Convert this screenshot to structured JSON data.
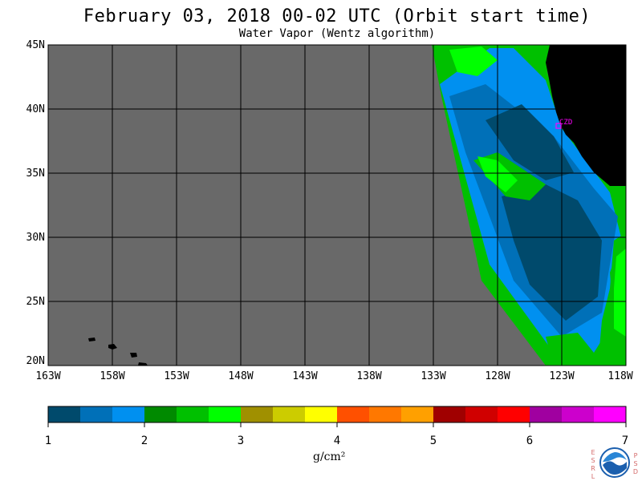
{
  "header": {
    "title": "February 03, 2018  00-02 UTC  (Orbit start time)",
    "subtitle": "Water Vapor (Wentz algorithm)"
  },
  "map": {
    "lat_labels": [
      "45N",
      "40N",
      "35N",
      "30N",
      "25N",
      "20N"
    ],
    "lon_labels": [
      "163W",
      "158W",
      "153W",
      "148W",
      "143W",
      "138W",
      "133W",
      "128W",
      "123W",
      "118W"
    ],
    "lat_range": [
      20,
      45
    ],
    "lon_range": [
      -163,
      -118
    ],
    "no_data_color": "#696969",
    "land_color": "#000000",
    "grid_color": "#000000",
    "station": {
      "label": "CZD",
      "lat": 38.6,
      "lon": -123.2,
      "color": "#ff00ff"
    }
  },
  "colorbar": {
    "ticks": [
      "1",
      "2",
      "3",
      "4",
      "5",
      "6",
      "7"
    ],
    "range": [
      1,
      7
    ],
    "unit": "g/cm²",
    "colors": [
      "#004a6c",
      "#0070b8",
      "#0090f0",
      "#008a00",
      "#00c000",
      "#00ff00",
      "#a09000",
      "#cccc00",
      "#ffff00",
      "#ff5000",
      "#ff7800",
      "#ffa000",
      "#a00000",
      "#d00000",
      "#ff0000",
      "#a000a0",
      "#cc00cc",
      "#ff00ff"
    ]
  },
  "logo": {
    "left_letters": [
      "E",
      "S",
      "R",
      "L"
    ],
    "right_letters": [
      "P",
      "S",
      "D"
    ],
    "center_text": "NOAA"
  }
}
